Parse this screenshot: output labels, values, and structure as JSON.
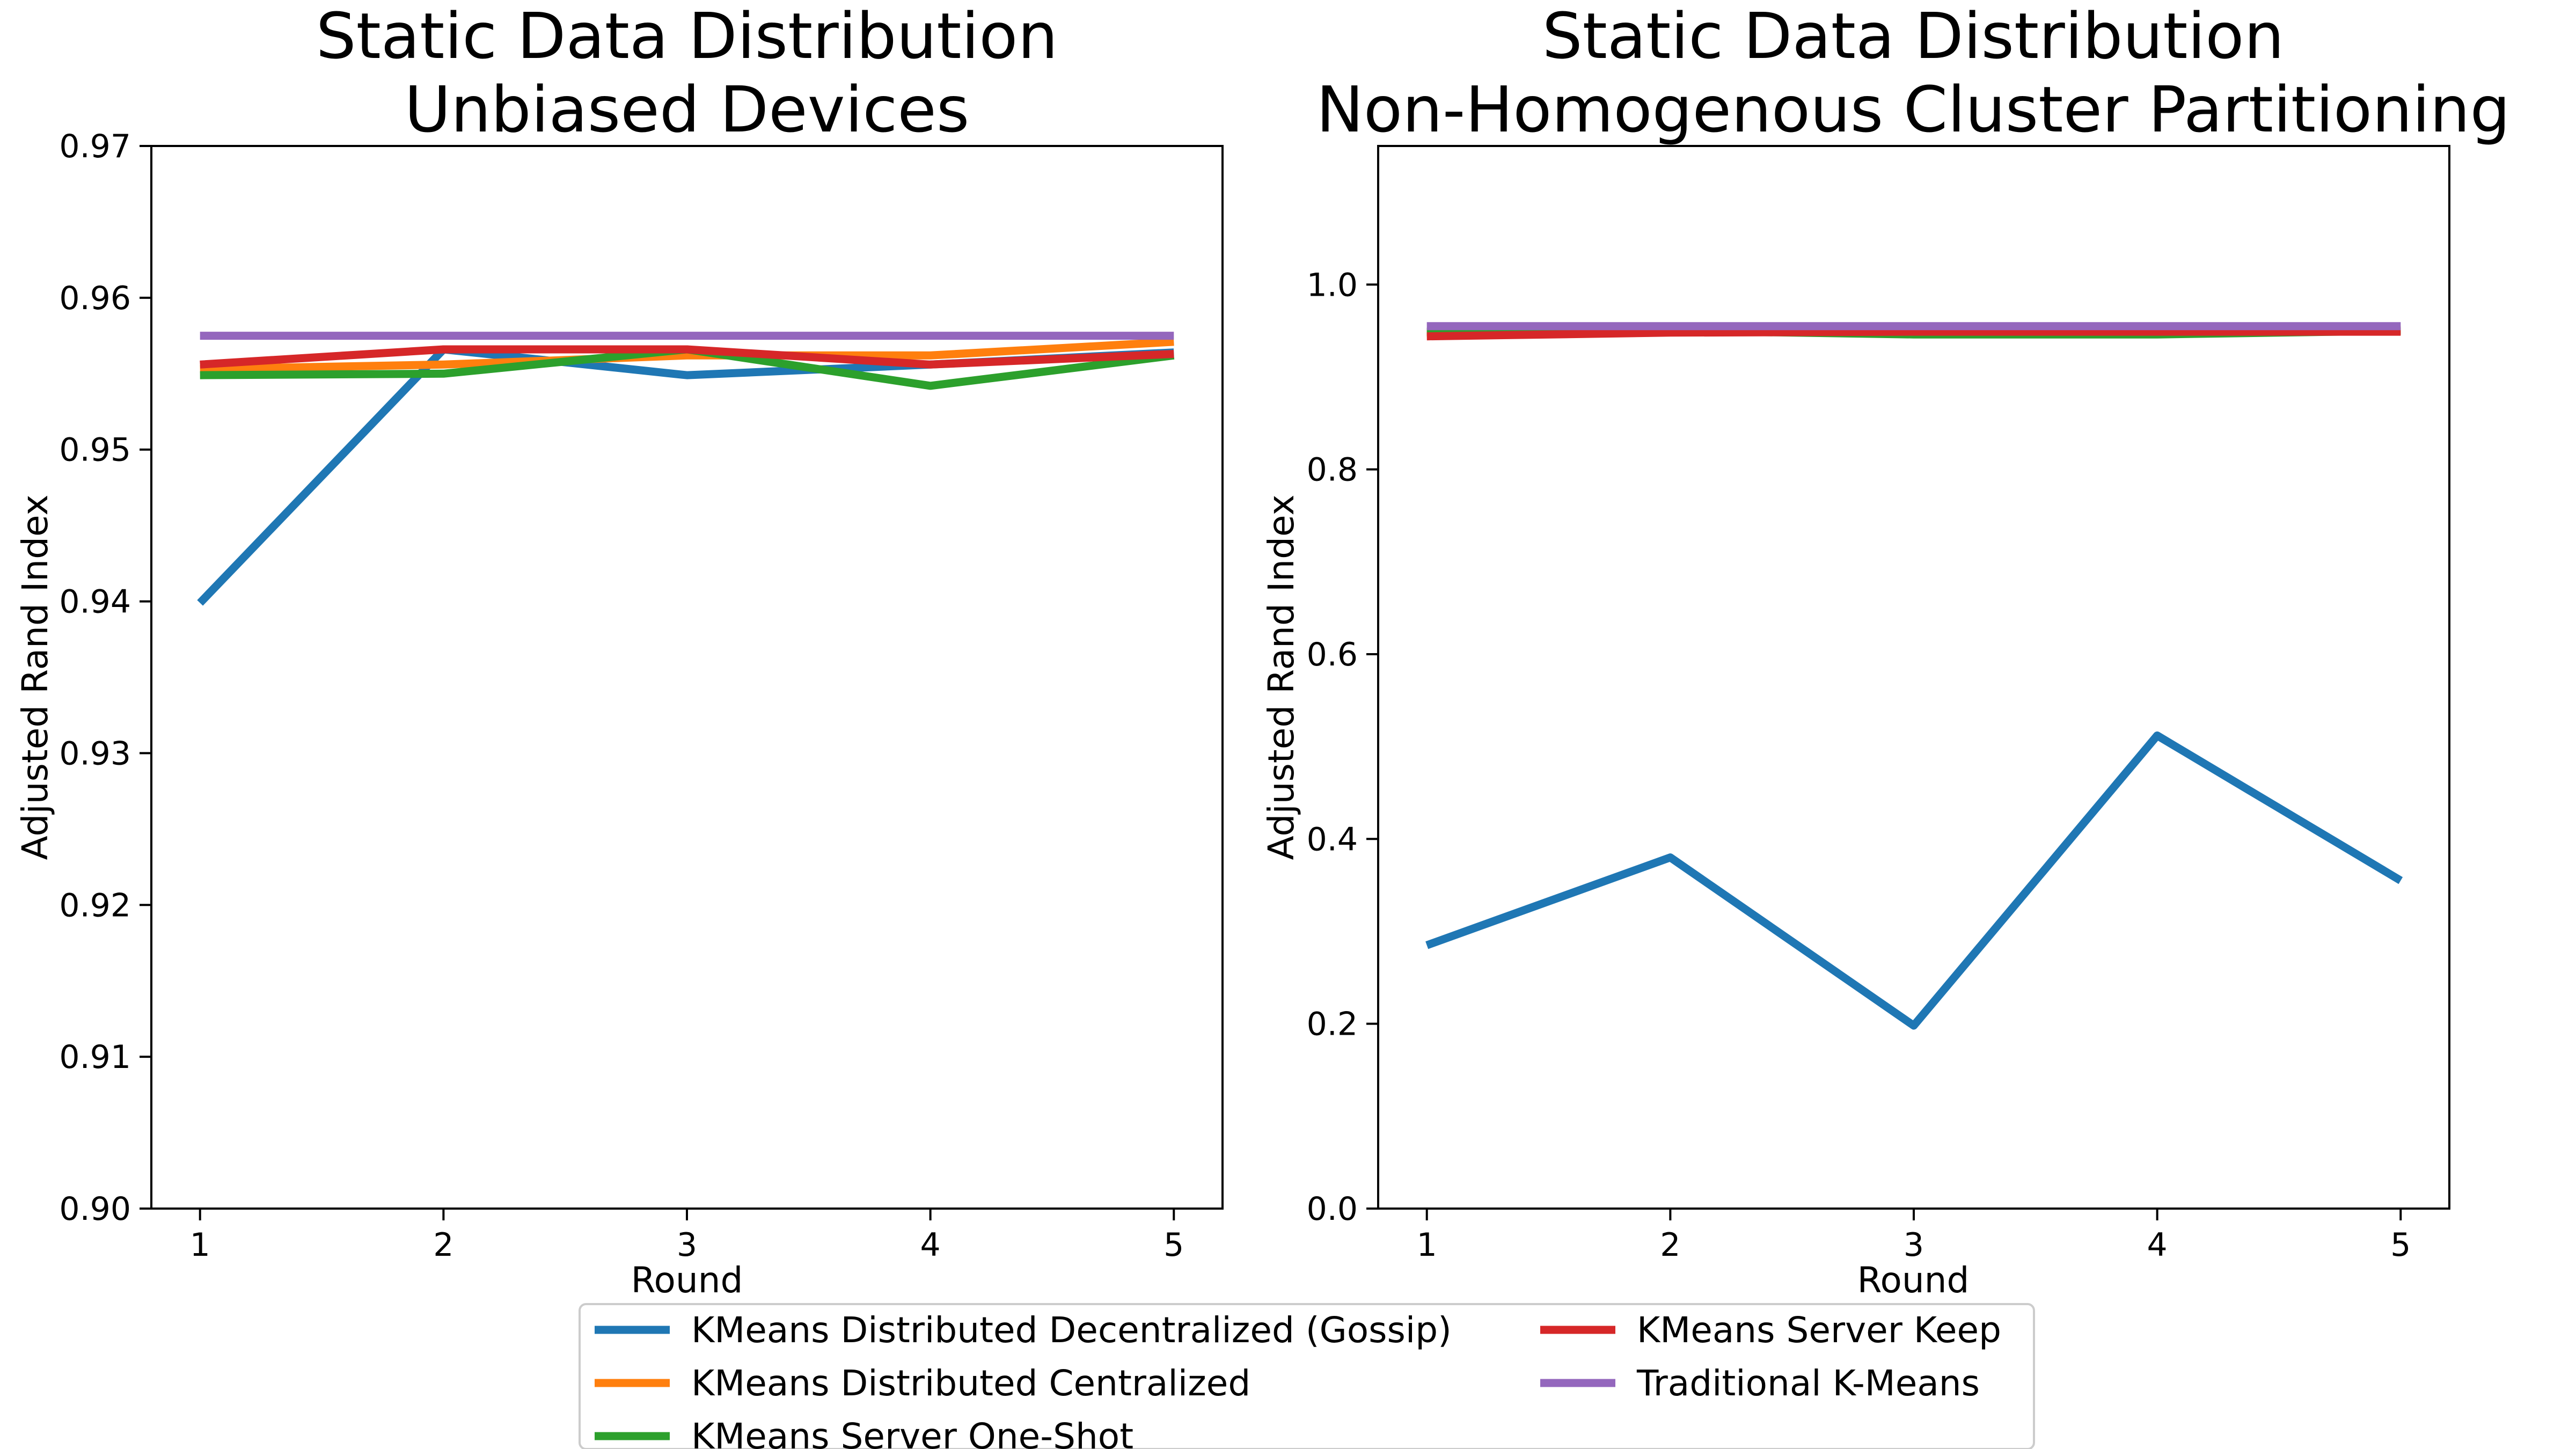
{
  "chart_data": [
    {
      "type": "line",
      "title_lines": [
        "Static Data Distribution",
        "Unbiased Devices"
      ],
      "xlabel": "Round",
      "ylabel": "Adjusted Rand Index",
      "x": [
        1,
        2,
        3,
        4,
        5
      ],
      "xticks": [
        "1",
        "2",
        "3",
        "4",
        "5"
      ],
      "ylim": [
        0.9,
        0.97
      ],
      "yticks": [
        "0.90",
        "0.91",
        "0.92",
        "0.93",
        "0.94",
        "0.95",
        "0.96",
        "0.97"
      ],
      "grid": false,
      "series": [
        {
          "name": "KMeans Distributed Decentralized (Gossip)",
          "color": "#1f77b4",
          "values": [
            0.9399,
            0.9566,
            0.9549,
            0.9556,
            0.9564
          ]
        },
        {
          "name": "KMeans Distributed Centralized",
          "color": "#ff7f0e",
          "values": [
            0.9553,
            0.9556,
            0.9562,
            0.9562,
            0.9571
          ]
        },
        {
          "name": "KMeans Server One-Shot",
          "color": "#2ca02c",
          "values": [
            0.9549,
            0.955,
            0.9566,
            0.9542,
            0.9562
          ]
        },
        {
          "name": "KMeans Server Keep",
          "color": "#d62728",
          "values": [
            0.9556,
            0.9566,
            0.9566,
            0.9556,
            0.9563
          ]
        },
        {
          "name": "Traditional K-Means",
          "color": "#9467bd",
          "values": [
            0.9575,
            0.9575,
            0.9575,
            0.9575,
            0.9575
          ]
        }
      ]
    },
    {
      "type": "line",
      "title_lines": [
        "Static Data Distribution",
        "Non-Homogenous Cluster Partitioning"
      ],
      "xlabel": "Round",
      "ylabel": "Adjusted Rand Index",
      "x": [
        1,
        2,
        3,
        4,
        5
      ],
      "xticks": [
        "1",
        "2",
        "3",
        "4",
        "5"
      ],
      "ylim": [
        0.0,
        1.15
      ],
      "yticks": [
        "0.0",
        "0.2",
        "0.4",
        "0.6",
        "0.8",
        "1.0"
      ],
      "grid": false,
      "series": [
        {
          "name": "KMeans Distributed Decentralized (Gossip)",
          "color": "#1f77b4",
          "values": [
            0.285,
            0.38,
            0.198,
            0.512,
            0.355
          ]
        },
        {
          "name": "KMeans Distributed Centralized",
          "color": "#ff7f0e",
          "values": [
            0.948,
            0.95,
            0.948,
            0.948,
            0.951
          ]
        },
        {
          "name": "KMeans Server One-Shot",
          "color": "#2ca02c",
          "values": [
            0.949,
            0.95,
            0.946,
            0.946,
            0.95
          ]
        },
        {
          "name": "KMeans Server Keep",
          "color": "#d62728",
          "values": [
            0.944,
            0.948,
            0.949,
            0.949,
            0.949
          ]
        },
        {
          "name": "Traditional K-Means",
          "color": "#9467bd",
          "values": [
            0.955,
            0.955,
            0.955,
            0.955,
            0.955
          ]
        }
      ]
    }
  ],
  "legend": {
    "placement": "bottom-center",
    "columns": 2,
    "entries": [
      {
        "label": "KMeans Distributed Decentralized (Gossip)",
        "color": "#1f77b4"
      },
      {
        "label": "KMeans Distributed Centralized",
        "color": "#ff7f0e"
      },
      {
        "label": "KMeans Server One-Shot",
        "color": "#2ca02c"
      },
      {
        "label": "KMeans Server Keep",
        "color": "#d62728"
      },
      {
        "label": "Traditional K-Means",
        "color": "#9467bd"
      }
    ]
  }
}
